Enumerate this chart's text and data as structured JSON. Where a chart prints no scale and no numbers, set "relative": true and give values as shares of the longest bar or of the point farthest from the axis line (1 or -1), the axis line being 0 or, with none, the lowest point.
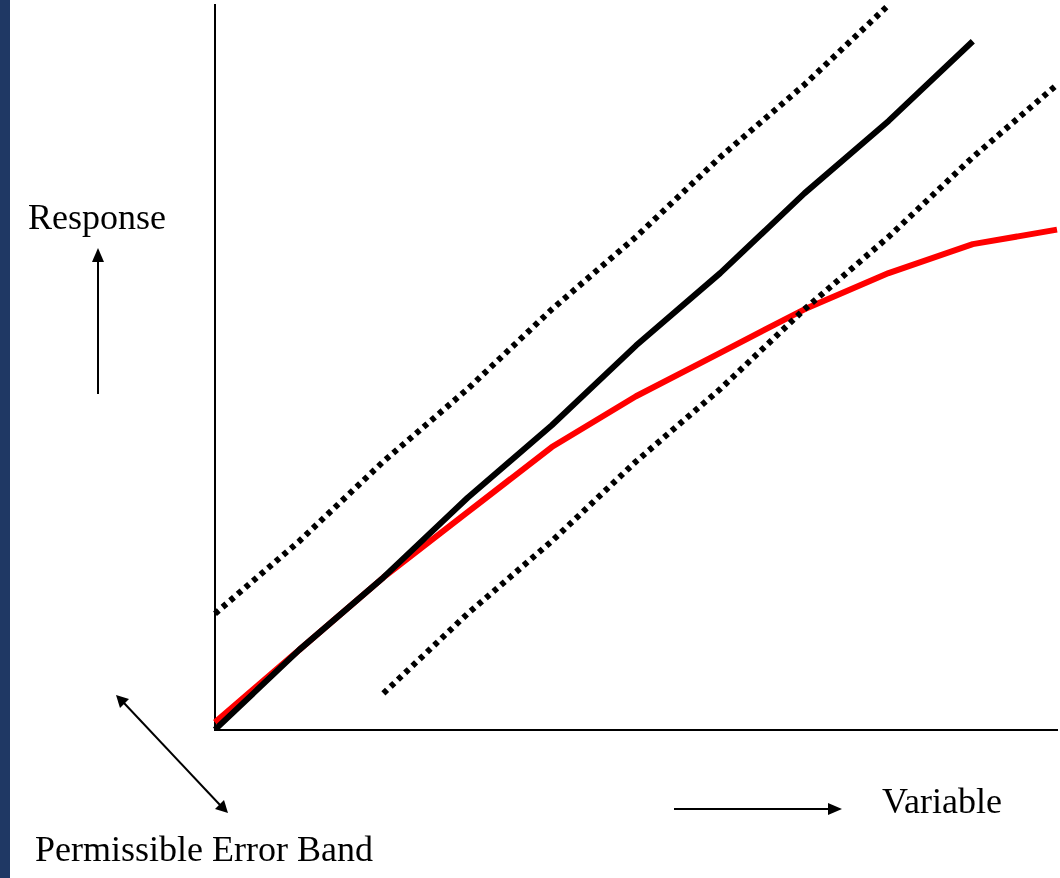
{
  "chart_data": {
    "type": "line",
    "relative": true,
    "xlabel": "Variable",
    "ylabel": "Response",
    "annotations": [
      "Permissible Error Band"
    ],
    "legend": false,
    "grid": false,
    "marker": "none",
    "categories": [
      null,
      null,
      null,
      null,
      null,
      null,
      null,
      null,
      null,
      null,
      null
    ],
    "series": [
      {
        "color": "#000000",
        "line_style": "solid",
        "values": [
          0,
          0.11,
          0.21,
          0.32,
          0.42,
          0.53,
          0.63,
          0.74,
          0.84,
          0.95,
          null
        ]
      },
      {
        "color": "#000000",
        "line_style": "dotted",
        "values": [
          0.16,
          0.26,
          0.37,
          0.47,
          0.58,
          0.68,
          0.79,
          0.89,
          1,
          null,
          null
        ]
      },
      {
        "color": "#000000",
        "line_style": "dotted",
        "values": [
          null,
          null,
          0.05,
          0.16,
          0.26,
          0.37,
          0.47,
          0.58,
          0.68,
          0.79,
          0.89
        ]
      },
      {
        "color": "#ff0000",
        "line_style": "solid",
        "values": [
          0.01,
          0.11,
          0.21,
          0.3,
          0.39,
          0.46,
          0.52,
          0.58,
          0.63,
          0.67,
          0.69
        ]
      }
    ]
  }
}
